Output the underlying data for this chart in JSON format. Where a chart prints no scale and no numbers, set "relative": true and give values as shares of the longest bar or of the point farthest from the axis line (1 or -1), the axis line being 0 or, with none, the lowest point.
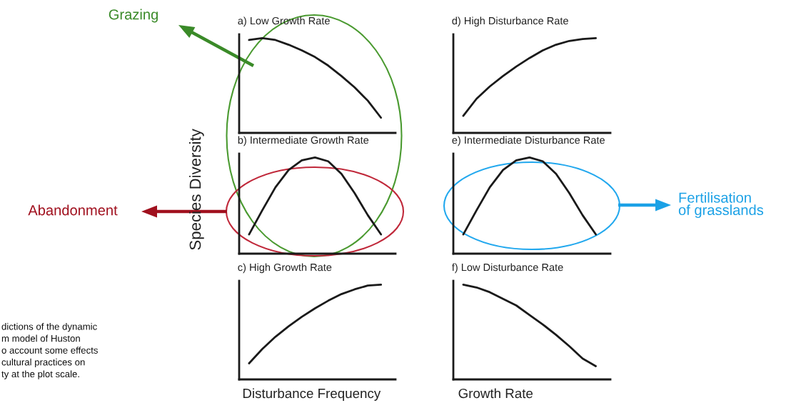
{
  "chart_data": [
    {
      "type": "line",
      "relative": true,
      "title": "a) Low Growth Rate",
      "categories": [
        null,
        null,
        null,
        null,
        null,
        null,
        null,
        null,
        null,
        null,
        null
      ],
      "series": [
        {
          "color": "#1a1a1a",
          "values": [
            0.98,
            1.0,
            0.98,
            0.93,
            0.87,
            0.8,
            0.71,
            0.6,
            0.48,
            0.34,
            0.16
          ]
        }
      ],
      "annotations": [
        "Grazing"
      ]
    },
    {
      "type": "line",
      "relative": true,
      "title": "b) Intermediate Growth Rate",
      "ylabel": "Species Diversity",
      "categories": [
        null,
        null,
        null,
        null,
        null,
        null,
        null,
        null,
        null,
        null,
        null
      ],
      "series": [
        {
          "color": "#1a1a1a",
          "values": [
            0.2,
            0.45,
            0.69,
            0.87,
            0.97,
            1.0,
            0.96,
            0.83,
            0.63,
            0.4,
            0.2
          ]
        }
      ],
      "annotations": [
        "Abandonment"
      ]
    },
    {
      "type": "line",
      "relative": true,
      "title": "c) High Growth Rate",
      "xlabel": "Disturbance Frequency",
      "categories": [
        null,
        null,
        null,
        null,
        null,
        null,
        null,
        null,
        null,
        null,
        null
      ],
      "series": [
        {
          "color": "#1a1a1a",
          "values": [
            0.17,
            0.32,
            0.45,
            0.56,
            0.66,
            0.75,
            0.83,
            0.9,
            0.95,
            0.99,
            1.0
          ]
        }
      ],
      "annotations": [
        "dictions of the dynamic\nm model of Huston\no account some effects\ncultural practices on\nty at the plot scale."
      ]
    },
    {
      "type": "line",
      "relative": true,
      "title": "d) High Disturbance Rate",
      "categories": [
        null,
        null,
        null,
        null,
        null,
        null,
        null,
        null,
        null,
        null,
        null
      ],
      "series": [
        {
          "color": "#1a1a1a",
          "values": [
            0.18,
            0.36,
            0.49,
            0.6,
            0.7,
            0.79,
            0.87,
            0.93,
            0.97,
            0.99,
            1.0
          ]
        }
      ]
    },
    {
      "type": "line",
      "relative": true,
      "title": "e) Intermediate Disturbance Rate",
      "categories": [
        null,
        null,
        null,
        null,
        null,
        null,
        null,
        null,
        null,
        null,
        null
      ],
      "series": [
        {
          "color": "#1a1a1a",
          "values": [
            0.2,
            0.45,
            0.69,
            0.87,
            0.97,
            1.0,
            0.96,
            0.83,
            0.63,
            0.4,
            0.2
          ]
        }
      ],
      "annotations": [
        "Fertilisation\nof grasslands"
      ]
    },
    {
      "type": "line",
      "relative": true,
      "title": "f) Low Disturbance Rate",
      "xlabel": "Growth Rate",
      "categories": [
        null,
        null,
        null,
        null,
        null,
        null,
        null,
        null,
        null,
        null,
        null
      ],
      "series": [
        {
          "color": "#1a1a1a",
          "values": [
            1.0,
            0.97,
            0.92,
            0.85,
            0.78,
            0.68,
            0.58,
            0.47,
            0.35,
            0.22,
            0.14
          ]
        }
      ]
    }
  ]
}
